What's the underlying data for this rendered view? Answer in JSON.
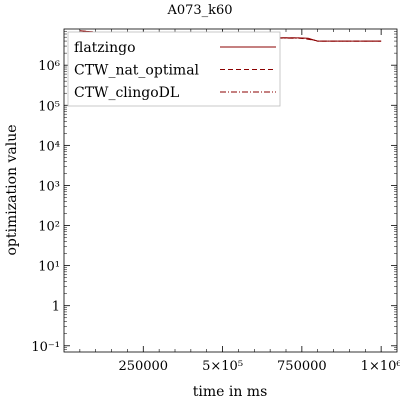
{
  "chart_data": {
    "type": "line",
    "title": "A073_k60",
    "xlabel": "time in ms",
    "ylabel": "optimization value",
    "x_scale": "linear",
    "y_scale": "log",
    "xlim": [
      0,
      1050000
    ],
    "ylim": [
      0.07,
      8000000
    ],
    "grid": false,
    "legend_position": "upper-left",
    "x_ticks": [
      {
        "value": 250000,
        "label": "250000"
      },
      {
        "value": 500000,
        "label": "5×10⁵"
      },
      {
        "value": 750000,
        "label": "750000"
      },
      {
        "value": 1000000,
        "label": "1×10⁶"
      }
    ],
    "y_ticks": [
      {
        "value": 0.1,
        "label": "10⁻¹"
      },
      {
        "value": 1,
        "label": "1"
      },
      {
        "value": 10,
        "label": "10¹"
      },
      {
        "value": 100,
        "label": "10²"
      },
      {
        "value": 1000,
        "label": "10³"
      },
      {
        "value": 10000,
        "label": "10⁴"
      },
      {
        "value": 100000,
        "label": "10⁵"
      },
      {
        "value": 1000000,
        "label": "10⁶"
      }
    ],
    "series": [
      {
        "name": "flatzingo",
        "color": "#8b0000",
        "dash": "solid",
        "points": [
          [
            60000,
            7000000
          ],
          [
            90000,
            6800000
          ],
          [
            100000,
            5800000
          ],
          [
            110000,
            5200000
          ],
          [
            200000,
            5000000
          ],
          [
            500000,
            4900000
          ],
          [
            740000,
            4800000
          ],
          [
            770000,
            4700000
          ],
          [
            790000,
            4200000
          ],
          [
            800000,
            4000000
          ],
          [
            1000000,
            4000000
          ]
        ]
      },
      {
        "name": "CTW_nat_optimal",
        "color": "#8b0000",
        "dash": "dashed",
        "points": [
          [
            60000,
            6800000
          ],
          [
            100000,
            5500000
          ],
          [
            200000,
            5000000
          ],
          [
            500000,
            4900000
          ],
          [
            740000,
            4800000
          ],
          [
            790000,
            4200000
          ],
          [
            800000,
            4000000
          ],
          [
            1000000,
            4000000
          ]
        ]
      },
      {
        "name": "CTW_clingoDL",
        "color": "#8b0000",
        "dash": "dashdot",
        "points": [
          [
            50000,
            7200000
          ],
          [
            80000,
            6900000
          ],
          [
            100000,
            5400000
          ],
          [
            120000,
            5100000
          ],
          [
            500000,
            4900000
          ],
          [
            760000,
            4700000
          ],
          [
            790000,
            4200000
          ],
          [
            800000,
            4000000
          ],
          [
            1000000,
            4000000
          ]
        ]
      }
    ]
  }
}
